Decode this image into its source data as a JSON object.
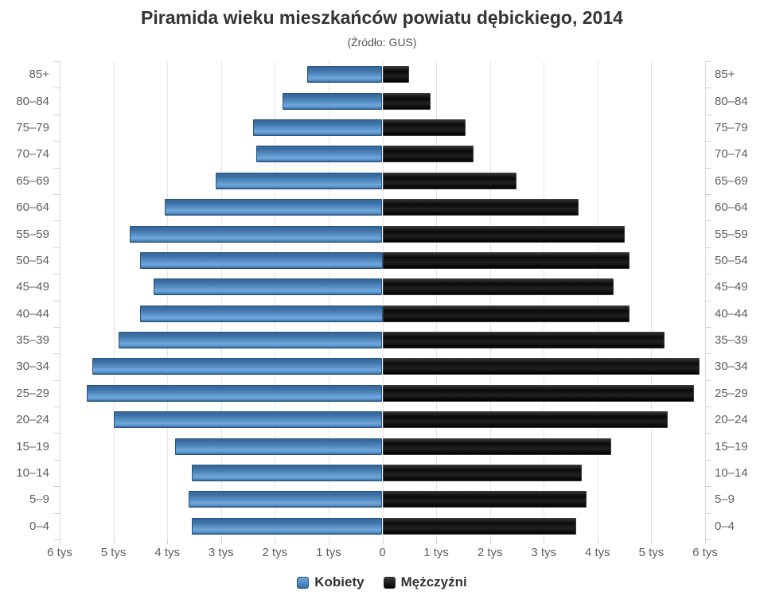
{
  "header": {
    "title": "Piramida wieku mieszkańców powiatu dębickiego, 2014",
    "subtitle": "(Źródło: GUS)"
  },
  "chart_data": {
    "type": "bar",
    "variant": "population-pyramid",
    "title": "Piramida wieku mieszkańców powiatu dębickiego, 2014",
    "subtitle": "(Źródło: GUS)",
    "unit": "tys",
    "categories": [
      "85+",
      "80–84",
      "75–79",
      "70–74",
      "65–69",
      "60–64",
      "55–59",
      "50–54",
      "45–49",
      "40–44",
      "35–39",
      "30–34",
      "25–29",
      "20–24",
      "15–19",
      "10–14",
      "5–9",
      "0–4"
    ],
    "series": [
      {
        "name": "Kobiety",
        "side": "left",
        "color": "#5b94c8",
        "values": [
          1.4,
          1.85,
          2.4,
          2.35,
          3.1,
          4.05,
          4.7,
          4.5,
          4.25,
          4.5,
          4.9,
          5.4,
          5.5,
          5.0,
          3.85,
          3.55,
          3.6,
          3.55
        ]
      },
      {
        "name": "Mężczyźni",
        "side": "right",
        "color": "#111111",
        "values": [
          0.5,
          0.9,
          1.55,
          1.7,
          2.5,
          3.65,
          4.5,
          4.6,
          4.3,
          4.6,
          5.25,
          5.9,
          5.8,
          5.3,
          4.25,
          3.7,
          3.8,
          3.6
        ]
      }
    ],
    "x_axis": {
      "tick_labels": [
        "6 tys",
        "5 tys",
        "4 tys",
        "3 tys",
        "2 tys",
        "1 tys",
        "0",
        "1 tys",
        "2 tys",
        "3 tys",
        "4 tys",
        "5 tys",
        "6 tys"
      ],
      "tick_values": [
        -6,
        -5,
        -4,
        -3,
        -2,
        -1,
        0,
        1,
        2,
        3,
        4,
        5,
        6
      ],
      "range": [
        -6,
        6
      ],
      "grid": true
    },
    "y_axis": {
      "labels_on_both_sides": true
    },
    "legend_position": "bottom"
  }
}
